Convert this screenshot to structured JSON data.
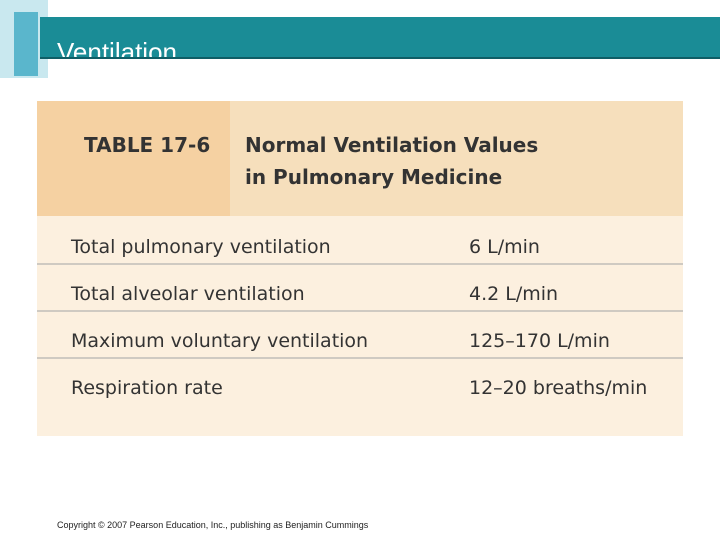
{
  "header": {
    "title": "Ventilation"
  },
  "table": {
    "label": "TABLE 17-6",
    "caption": [
      "Normal Ventilation Values",
      "in Pulmonary Medicine"
    ],
    "rows": [
      [
        "Total pulmonary ventilation",
        "6 L/min"
      ],
      [
        "Total alveolar ventilation",
        "4.2 L/min"
      ],
      [
        "Maximum voluntary ventilation",
        "125–170 L/min"
      ],
      [
        "Respiration rate",
        "12–20 breaths/min"
      ]
    ]
  },
  "footer": {
    "copyright": "Copyright © 2007 Pearson Education, Inc., publishing as Benjamin Cummings"
  }
}
